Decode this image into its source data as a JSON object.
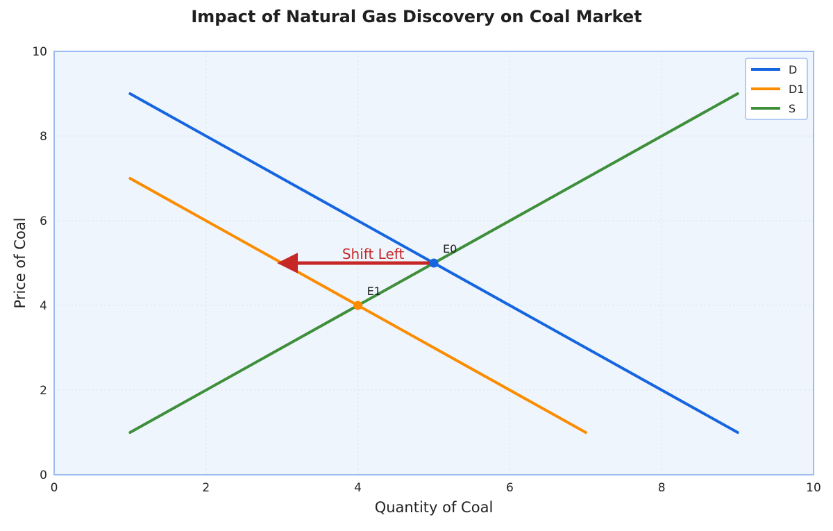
{
  "chart_data": {
    "type": "line",
    "title": "Impact of Natural Gas Discovery on Coal Market",
    "xlabel": "Quantity of Coal",
    "ylabel": "Price of Coal",
    "xlim": [
      0,
      10
    ],
    "ylim": [
      0,
      10
    ],
    "x_ticks": [
      0,
      2,
      4,
      6,
      8,
      10
    ],
    "y_ticks": [
      0,
      2,
      4,
      6,
      8,
      10
    ],
    "grid": true,
    "legend_position": "top-right",
    "series": [
      {
        "name": "D",
        "color": "#1565E0",
        "points": [
          [
            1,
            9
          ],
          [
            9,
            1
          ]
        ]
      },
      {
        "name": "D1",
        "color": "#FB8C00",
        "points": [
          [
            1,
            7
          ],
          [
            7,
            1
          ]
        ]
      },
      {
        "name": "S",
        "color": "#3E8E3A",
        "points": [
          [
            1,
            1
          ],
          [
            9,
            9
          ]
        ]
      }
    ],
    "equilibria": [
      {
        "label": "E0",
        "x": 5,
        "y": 5,
        "color": "#1565E0"
      },
      {
        "label": "E1",
        "x": 4,
        "y": 4,
        "color": "#FB8C00"
      }
    ],
    "arrow": {
      "label": "Shift Left",
      "from": [
        5,
        5
      ],
      "to": [
        3,
        5
      ],
      "color": "#C62828"
    }
  },
  "colors": {
    "plot_background": "#EEF5FC",
    "plot_border": "#9DBBF3",
    "grid": "#DCE5F0",
    "text": "#222222"
  }
}
